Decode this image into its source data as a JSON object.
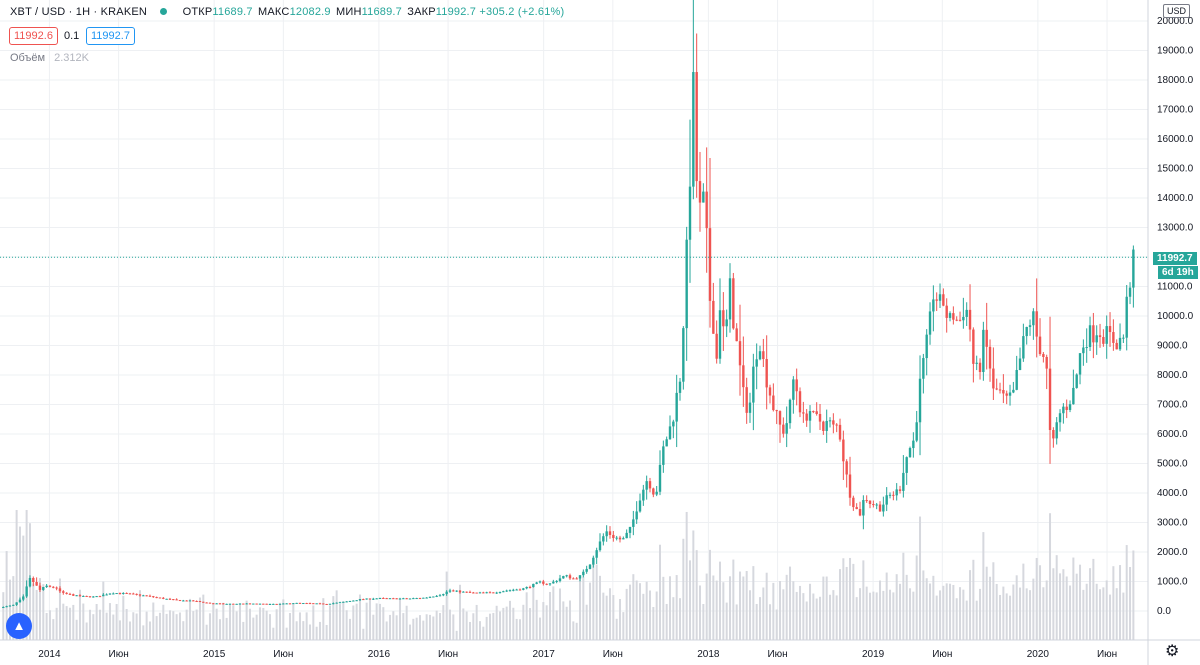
{
  "header": {
    "symbol": "XBT / USD · 1H · KRAKEN",
    "open_label": "ОТКР",
    "open": "11689.7",
    "high_label": "МАКС",
    "high": "12082.9",
    "low_label": "МИН",
    "low": "11689.7",
    "close_label": "ЗАКР",
    "close": "11992.7",
    "change": "+305.2 (+2.61%)"
  },
  "quotes": {
    "bid": "11992.6",
    "spread": "0.1",
    "ask": "11992.7"
  },
  "volume": {
    "label": "Объём",
    "value": "2.312K"
  },
  "currency": "USD",
  "last_price_label": "11992.7",
  "countdown": "6d 19h",
  "colors": {
    "up": "#26a69a",
    "down": "#ef5350",
    "volume": "#d6d8de",
    "grid": "#eef0f3",
    "last_line": "#26a69a"
  },
  "icons": {
    "logo": "tradingview-logo-icon",
    "settings": "gear-icon"
  },
  "chart_data": {
    "type": "candlestick",
    "title": "XBT / USD · 1H · KRAKEN",
    "ylim": [
      -1000,
      20000
    ],
    "y_ticks": [
      "0.0",
      "1000.0",
      "2000.0",
      "3000.0",
      "4000.0",
      "5000.0",
      "6000.0",
      "7000.0",
      "8000.0",
      "9000.0",
      "10000.0",
      "11000.0",
      "12000.0",
      "13000.0",
      "14000.0",
      "15000.0",
      "16000.0",
      "17000.0",
      "18000.0",
      "19000.0",
      "20000.0"
    ],
    "x_ticks": [
      "2014",
      "Июн",
      "2015",
      "Июн",
      "2016",
      "Июн",
      "2017",
      "Июн",
      "2018",
      "Июн",
      "2019",
      "Июн",
      "2020",
      "Июн"
    ],
    "x_range": [
      2013.7,
      2020.62
    ],
    "x_tick_positions": [
      2014.0,
      2014.42,
      2015.0,
      2015.42,
      2016.0,
      2016.42,
      2017.0,
      2017.42,
      2018.0,
      2018.42,
      2019.0,
      2019.42,
      2020.0,
      2020.42
    ],
    "price_path": [
      [
        2013.72,
        120
      ],
      [
        2013.8,
        200
      ],
      [
        2013.86,
        450
      ],
      [
        2013.9,
        1100
      ],
      [
        2013.93,
        950
      ],
      [
        2013.96,
        700
      ],
      [
        2014.0,
        850
      ],
      [
        2014.05,
        800
      ],
      [
        2014.1,
        600
      ],
      [
        2014.2,
        500
      ],
      [
        2014.3,
        480
      ],
      [
        2014.4,
        620
      ],
      [
        2014.5,
        580
      ],
      [
        2014.6,
        520
      ],
      [
        2014.7,
        430
      ],
      [
        2014.8,
        360
      ],
      [
        2014.9,
        340
      ],
      [
        2015.0,
        260
      ],
      [
        2015.1,
        240
      ],
      [
        2015.2,
        250
      ],
      [
        2015.3,
        240
      ],
      [
        2015.4,
        230
      ],
      [
        2015.5,
        270
      ],
      [
        2015.6,
        260
      ],
      [
        2015.7,
        240
      ],
      [
        2015.8,
        300
      ],
      [
        2015.9,
        390
      ],
      [
        2016.0,
        430
      ],
      [
        2016.1,
        420
      ],
      [
        2016.2,
        420
      ],
      [
        2016.3,
        450
      ],
      [
        2016.4,
        560
      ],
      [
        2016.45,
        700
      ],
      [
        2016.5,
        660
      ],
      [
        2016.6,
        610
      ],
      [
        2016.7,
        620
      ],
      [
        2016.8,
        700
      ],
      [
        2016.9,
        760
      ],
      [
        2017.0,
        980
      ],
      [
        2017.05,
        900
      ],
      [
        2017.1,
        1050
      ],
      [
        2017.15,
        1200
      ],
      [
        2017.2,
        1100
      ],
      [
        2017.25,
        1200
      ],
      [
        2017.3,
        1600
      ],
      [
        2017.35,
        2200
      ],
      [
        2017.4,
        2700
      ],
      [
        2017.45,
        2500
      ],
      [
        2017.5,
        2400
      ],
      [
        2017.55,
        2800
      ],
      [
        2017.6,
        3800
      ],
      [
        2017.65,
        4500
      ],
      [
        2017.7,
        3900
      ],
      [
        2017.75,
        5600
      ],
      [
        2017.8,
        6400
      ],
      [
        2017.85,
        8000
      ],
      [
        2017.88,
        11000
      ],
      [
        2017.91,
        15000
      ],
      [
        2017.93,
        17800
      ],
      [
        2017.95,
        14500
      ],
      [
        2017.97,
        13500
      ],
      [
        2018.0,
        14000
      ],
      [
        2018.02,
        11000
      ],
      [
        2018.05,
        9800
      ],
      [
        2018.07,
        8500
      ],
      [
        2018.09,
        10500
      ],
      [
        2018.12,
        9000
      ],
      [
        2018.15,
        11000
      ],
      [
        2018.18,
        9500
      ],
      [
        2018.21,
        8300
      ],
      [
        2018.24,
        7000
      ],
      [
        2018.27,
        6900
      ],
      [
        2018.3,
        8500
      ],
      [
        2018.33,
        9300
      ],
      [
        2018.36,
        8200
      ],
      [
        2018.39,
        7500
      ],
      [
        2018.42,
        6800
      ],
      [
        2018.45,
        6300
      ],
      [
        2018.48,
        6100
      ],
      [
        2018.51,
        6700
      ],
      [
        2018.54,
        8000
      ],
      [
        2018.57,
        7100
      ],
      [
        2018.6,
        6400
      ],
      [
        2018.63,
        6900
      ],
      [
        2018.66,
        6500
      ],
      [
        2018.69,
        6500
      ],
      [
        2018.72,
        6300
      ],
      [
        2018.75,
        6400
      ],
      [
        2018.78,
        6200
      ],
      [
        2018.81,
        6300
      ],
      [
        2018.85,
        4800
      ],
      [
        2018.88,
        4000
      ],
      [
        2018.91,
        3500
      ],
      [
        2018.94,
        3300
      ],
      [
        2018.97,
        3900
      ],
      [
        2019.0,
        3700
      ],
      [
        2019.03,
        3600
      ],
      [
        2019.06,
        3500
      ],
      [
        2019.09,
        3700
      ],
      [
        2019.12,
        3900
      ],
      [
        2019.15,
        4000
      ],
      [
        2019.18,
        4100
      ],
      [
        2019.21,
        5000
      ],
      [
        2019.24,
        5500
      ],
      [
        2019.27,
        5800
      ],
      [
        2019.3,
        7500
      ],
      [
        2019.33,
        8500
      ],
      [
        2019.36,
        9500
      ],
      [
        2019.39,
        11000
      ],
      [
        2019.42,
        10300
      ],
      [
        2019.45,
        10500
      ],
      [
        2019.48,
        9700
      ],
      [
        2019.51,
        10100
      ],
      [
        2019.54,
        9700
      ],
      [
        2019.57,
        10300
      ],
      [
        2019.6,
        10100
      ],
      [
        2019.63,
        8300
      ],
      [
        2019.66,
        8000
      ],
      [
        2019.69,
        9200
      ],
      [
        2019.72,
        8700
      ],
      [
        2019.75,
        7400
      ],
      [
        2019.78,
        7500
      ],
      [
        2019.81,
        7200
      ],
      [
        2019.84,
        7100
      ],
      [
        2019.87,
        7300
      ],
      [
        2019.9,
        8200
      ],
      [
        2019.93,
        9000
      ],
      [
        2019.96,
        9700
      ],
      [
        2019.99,
        10000
      ],
      [
        2020.02,
        9100
      ],
      [
        2020.05,
        8800
      ],
      [
        2020.08,
        7900
      ],
      [
        2020.1,
        5200
      ],
      [
        2020.13,
        6200
      ],
      [
        2020.16,
        6800
      ],
      [
        2020.2,
        7000
      ],
      [
        2020.24,
        7500
      ],
      [
        2020.28,
        8800
      ],
      [
        2020.31,
        9300
      ],
      [
        2020.35,
        9400
      ],
      [
        2020.38,
        9600
      ],
      [
        2020.42,
        9400
      ],
      [
        2020.45,
        9300
      ],
      [
        2020.48,
        9200
      ],
      [
        2020.51,
        9100
      ],
      [
        2020.54,
        9300
      ],
      [
        2020.57,
        11000
      ],
      [
        2020.6,
        11800
      ]
    ]
  }
}
